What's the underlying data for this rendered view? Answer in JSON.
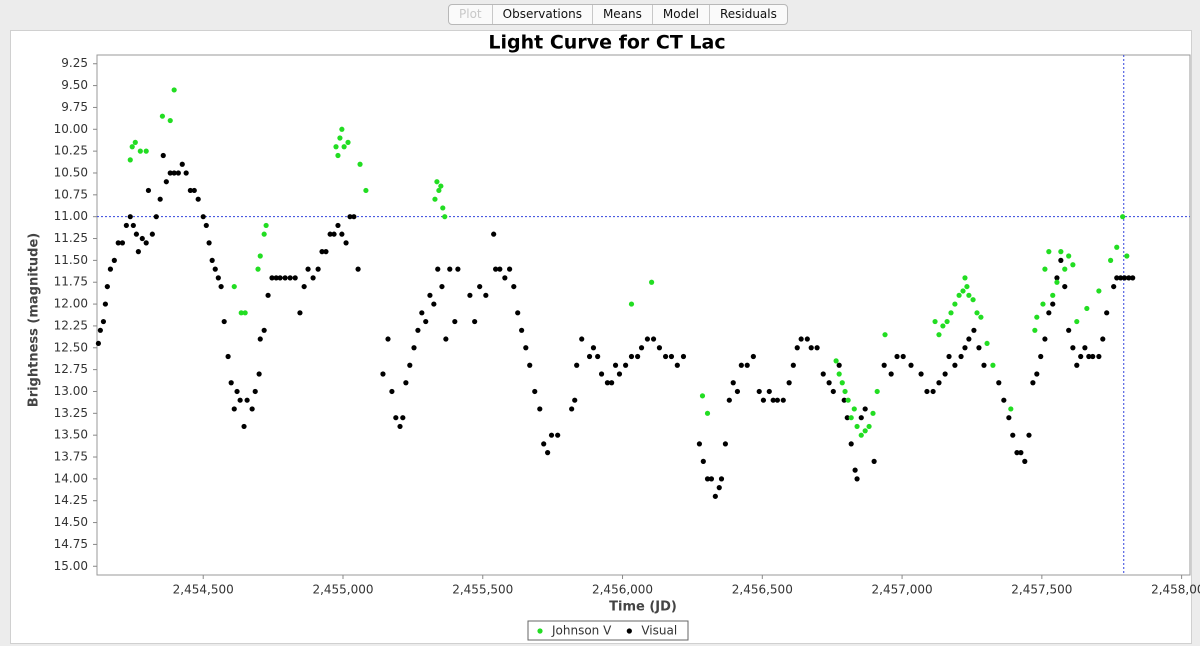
{
  "tabs": [
    "Plot",
    "Observations",
    "Means",
    "Model",
    "Residuals"
  ],
  "chart_data": {
    "type": "scatter",
    "title": "Light Curve for CT Lac",
    "x_label": "Time (JD)",
    "y_label": "Brightness (magnitude)",
    "xlim": [
      2454120,
      2458030
    ],
    "ylim": [
      9.15,
      15.1
    ],
    "y_inverted": true,
    "xticks": [
      {
        "value": 2454500,
        "label": "2,454,500"
      },
      {
        "value": 2455000,
        "label": "2,455,000"
      },
      {
        "value": 2455500,
        "label": "2,455,500"
      },
      {
        "value": 2456000,
        "label": "2,456,000"
      },
      {
        "value": 2456500,
        "label": "2,456,500"
      },
      {
        "value": 2457000,
        "label": "2,457,000"
      },
      {
        "value": 2457500,
        "label": "2,457,500"
      },
      {
        "value": 2458000,
        "label": "2,458,000"
      }
    ],
    "yticks": [
      9.25,
      {
        "value": 9.5,
        "label": "9.50"
      },
      9.75,
      {
        "value": 10,
        "label": "10.00"
      },
      10.25,
      {
        "value": 10.5,
        "label": "10.50"
      },
      10.75,
      {
        "value": 11,
        "label": "11.00"
      },
      11.25,
      {
        "value": 11.5,
        "label": "11.50"
      },
      11.75,
      {
        "value": 12,
        "label": "12.00"
      },
      12.25,
      {
        "value": 12.5,
        "label": "12.50"
      },
      12.75,
      {
        "value": 13,
        "label": "13.00"
      },
      13.25,
      {
        "value": 13.5,
        "label": "13.50"
      },
      13.75,
      {
        "value": 14,
        "label": "14.00"
      },
      14.25,
      {
        "value": 14.5,
        "label": "14.50"
      },
      14.75,
      {
        "value": 15,
        "label": "15.00"
      }
    ],
    "crosshair": {
      "x": 2457793,
      "y": 11,
      "color": "#3344dd"
    },
    "series": [
      {
        "name": "Johnson V",
        "color": "#22dd22",
        "x": [
          2454239,
          2454246,
          2454257,
          2454275,
          2454296,
          2454354,
          2454382,
          2454396,
          2454611,
          2454636,
          2454650,
          2454696,
          2454704,
          2454718,
          2454725,
          2454975,
          2454982,
          2454989,
          2454996,
          2455004,
          2455018,
          2455061,
          2455082,
          2455329,
          2455336,
          2455343,
          2455350,
          2455357,
          2455364,
          2456032,
          2456104,
          2456286,
          2456304,
          2456764,
          2456775,
          2456786,
          2456796,
          2456807,
          2456818,
          2456829,
          2456839,
          2456854,
          2456868,
          2456882,
          2456896,
          2456911,
          2456939,
          2457118,
          2457132,
          2457146,
          2457161,
          2457175,
          2457189,
          2457204,
          2457218,
          2457225,
          2457232,
          2457239,
          2457254,
          2457268,
          2457282,
          2457304,
          2457325,
          2457389,
          2457475,
          2457482,
          2457504,
          2457511,
          2457525,
          2457539,
          2457554,
          2457568,
          2457582,
          2457596,
          2457611,
          2457625,
          2457661,
          2457704,
          2457746,
          2457768,
          2457789,
          2457804
        ],
        "values": [
          10.35,
          10.2,
          10.15,
          10.25,
          10.25,
          9.85,
          9.9,
          9.55,
          11.8,
          12.1,
          12.1,
          11.6,
          11.45,
          11.2,
          11.1,
          10.2,
          10.3,
          10.1,
          10.0,
          10.2,
          10.15,
          10.4,
          10.7,
          10.8,
          10.6,
          10.7,
          10.65,
          10.9,
          11.0,
          12.0,
          11.75,
          13.05,
          13.25,
          12.65,
          12.8,
          12.9,
          13.0,
          13.1,
          13.3,
          13.2,
          13.4,
          13.5,
          13.45,
          13.4,
          13.25,
          13.0,
          12.35,
          12.2,
          12.35,
          12.25,
          12.2,
          12.1,
          12.0,
          11.9,
          11.85,
          11.7,
          11.8,
          11.9,
          11.95,
          12.1,
          12.15,
          12.45,
          12.7,
          13.2,
          12.3,
          12.15,
          12.0,
          11.6,
          11.4,
          11.9,
          11.75,
          11.4,
          11.6,
          11.45,
          11.55,
          12.2,
          12.05,
          11.85,
          11.5,
          11.35,
          11.0,
          11.45
        ]
      },
      {
        "name": "Visual",
        "color": "#000000",
        "x": [
          2454125,
          2454132,
          2454143,
          2454150,
          2454157,
          2454168,
          2454182,
          2454196,
          2454211,
          2454225,
          2454239,
          2454250,
          2454261,
          2454268,
          2454282,
          2454296,
          2454304,
          2454318,
          2454332,
          2454346,
          2454357,
          2454368,
          2454382,
          2454396,
          2454411,
          2454425,
          2454439,
          2454454,
          2454468,
          2454482,
          2454500,
          2454511,
          2454521,
          2454532,
          2454543,
          2454554,
          2454564,
          2454575,
          2454589,
          2454600,
          2454611,
          2454621,
          2454632,
          2454646,
          2454657,
          2454675,
          2454686,
          2454700,
          2454704,
          2454718,
          2454732,
          2454746,
          2454761,
          2454775,
          2454793,
          2454811,
          2454829,
          2454846,
          2454861,
          2454875,
          2454893,
          2454911,
          2454925,
          2454939,
          2454954,
          2454968,
          2454982,
          2454996,
          2455011,
          2455025,
          2455039,
          2455054,
          2455143,
          2455161,
          2455175,
          2455189,
          2455204,
          2455214,
          2455225,
          2455239,
          2455254,
          2455268,
          2455282,
          2455296,
          2455311,
          2455325,
          2455339,
          2455354,
          2455368,
          2455382,
          2455400,
          2455411,
          2455454,
          2455471,
          2455489,
          2455511,
          2455539,
          2455546,
          2455561,
          2455579,
          2455596,
          2455611,
          2455625,
          2455639,
          2455654,
          2455668,
          2455686,
          2455704,
          2455718,
          2455732,
          2455746,
          2455768,
          2455818,
          2455829,
          2455836,
          2455854,
          2455882,
          2455896,
          2455911,
          2455925,
          2455946,
          2455961,
          2455975,
          2455989,
          2456011,
          2456032,
          2456054,
          2456068,
          2456089,
          2456111,
          2456132,
          2456154,
          2456175,
          2456196,
          2456218,
          2456275,
          2456289,
          2456304,
          2456318,
          2456332,
          2456346,
          2456354,
          2456368,
          2456382,
          2456396,
          2456411,
          2456425,
          2456446,
          2456468,
          2456489,
          2456504,
          2456525,
          2456539,
          2456554,
          2456575,
          2456596,
          2456611,
          2456625,
          2456639,
          2456661,
          2456675,
          2456696,
          2456718,
          2456739,
          2456754,
          2456775,
          2456793,
          2456804,
          2456818,
          2456832,
          2456839,
          2456854,
          2456868,
          2456900,
          2456936,
          2456961,
          2456982,
          2457004,
          2457032,
          2457068,
          2457089,
          2457111,
          2457132,
          2457154,
          2457168,
          2457189,
          2457211,
          2457225,
          2457239,
          2457257,
          2457275,
          2457293,
          2457346,
          2457364,
          2457382,
          2457396,
          2457411,
          2457425,
          2457439,
          2457454,
          2457468,
          2457482,
          2457496,
          2457511,
          2457525,
          2457539,
          2457554,
          2457568,
          2457582,
          2457596,
          2457611,
          2457625,
          2457639,
          2457654,
          2457668,
          2457682,
          2457704,
          2457718,
          2457732,
          2457757,
          2457768,
          2457782,
          2457796,
          2457811,
          2457825
        ],
        "values": [
          12.45,
          12.3,
          12.2,
          12.0,
          11.8,
          11.6,
          11.5,
          11.3,
          11.3,
          11.1,
          11.0,
          11.1,
          11.2,
          11.4,
          11.25,
          11.3,
          10.7,
          11.2,
          11.0,
          10.8,
          10.3,
          10.6,
          10.5,
          10.5,
          10.5,
          10.4,
          10.5,
          10.7,
          10.7,
          10.8,
          11.0,
          11.1,
          11.3,
          11.5,
          11.6,
          11.7,
          11.8,
          12.2,
          12.6,
          12.9,
          13.2,
          13.0,
          13.1,
          13.4,
          13.1,
          13.2,
          13.0,
          12.8,
          12.4,
          12.3,
          11.9,
          11.7,
          11.7,
          11.7,
          11.7,
          11.7,
          11.7,
          12.1,
          11.8,
          11.6,
          11.7,
          11.6,
          11.4,
          11.4,
          11.2,
          11.2,
          11.1,
          11.2,
          11.3,
          11.0,
          11.0,
          11.6,
          12.8,
          12.4,
          13.0,
          13.3,
          13.4,
          13.3,
          12.9,
          12.7,
          12.5,
          12.3,
          12.1,
          12.2,
          11.9,
          12.0,
          11.6,
          11.8,
          12.4,
          11.6,
          12.2,
          11.6,
          11.9,
          12.2,
          11.8,
          11.9,
          11.2,
          11.6,
          11.6,
          11.7,
          11.6,
          11.8,
          12.1,
          12.3,
          12.5,
          12.7,
          13.0,
          13.2,
          13.6,
          13.7,
          13.5,
          13.5,
          13.2,
          13.1,
          12.7,
          12.4,
          12.6,
          12.5,
          12.6,
          12.8,
          12.9,
          12.9,
          12.7,
          12.8,
          12.7,
          12.6,
          12.6,
          12.5,
          12.4,
          12.4,
          12.5,
          12.6,
          12.6,
          12.7,
          12.6,
          13.6,
          13.8,
          14.0,
          14.0,
          14.2,
          14.1,
          14.0,
          13.6,
          13.1,
          12.9,
          13.0,
          12.7,
          12.7,
          12.6,
          13.0,
          13.1,
          13.0,
          13.1,
          13.1,
          13.1,
          12.9,
          12.7,
          12.5,
          12.4,
          12.4,
          12.5,
          12.5,
          12.8,
          12.9,
          13.0,
          12.7,
          13.1,
          13.3,
          13.6,
          13.9,
          14.0,
          13.3,
          13.2,
          13.8,
          12.7,
          12.8,
          12.6,
          12.6,
          12.7,
          12.8,
          13.0,
          13.0,
          12.9,
          12.8,
          12.6,
          12.7,
          12.6,
          12.5,
          12.4,
          12.3,
          12.5,
          12.7,
          12.9,
          13.1,
          13.3,
          13.5,
          13.7,
          13.7,
          13.8,
          13.5,
          12.9,
          12.8,
          12.6,
          12.4,
          12.1,
          12.0,
          11.7,
          11.5,
          11.8,
          12.3,
          12.5,
          12.7,
          12.6,
          12.5,
          12.6,
          12.6,
          12.6,
          12.4,
          12.1,
          11.8,
          11.7,
          11.7,
          11.7,
          11.7,
          11.7
        ]
      }
    ]
  }
}
